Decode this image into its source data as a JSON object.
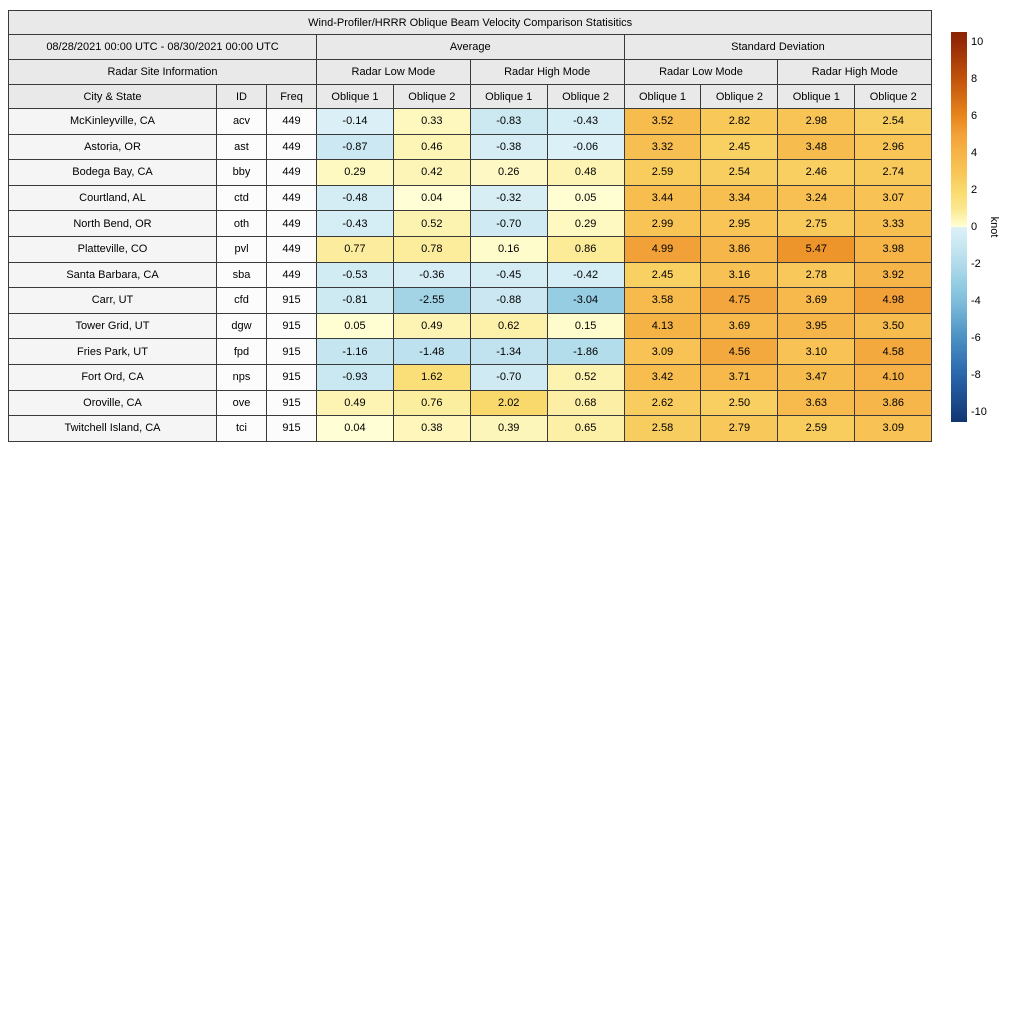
{
  "title": "Wind-Profiler/HRRR Oblique Beam Velocity Comparison Statisitics",
  "colors": {
    "page_background": "#ffffff",
    "header_background": "#e9e9e9",
    "site_cell_background": "#f5f5f5",
    "grid_border": "#3a3a3a"
  },
  "chart_data": {
    "type": "heatmap",
    "title": "Wind-Profiler/HRRR Oblique Beam Velocity Comparison Statisitics",
    "date_range": "08/28/2021 00:00 UTC - 08/30/2021 00:00 UTC",
    "site_info_header": "Radar Site Information",
    "group_headers": [
      "Average",
      "Standard Deviation"
    ],
    "mode_headers": [
      "Radar Low Mode",
      "Radar High Mode",
      "Radar Low Mode",
      "Radar High Mode"
    ],
    "column_headers": [
      "City & State",
      "ID",
      "Freq",
      "Oblique 1",
      "Oblique 2",
      "Oblique 1",
      "Oblique 2",
      "Oblique 1",
      "Oblique 2",
      "Oblique 1",
      "Oblique 2"
    ],
    "rows": [
      {
        "city": "McKinleyville, CA",
        "id": "acv",
        "freq": "449",
        "values": [
          -0.14,
          0.33,
          -0.83,
          -0.43,
          3.52,
          2.82,
          2.98,
          2.54
        ]
      },
      {
        "city": "Astoria, OR",
        "id": "ast",
        "freq": "449",
        "values": [
          -0.87,
          0.46,
          -0.38,
          -0.06,
          3.32,
          2.45,
          3.48,
          2.96
        ]
      },
      {
        "city": "Bodega Bay, CA",
        "id": "bby",
        "freq": "449",
        "values": [
          0.29,
          0.42,
          0.26,
          0.48,
          2.59,
          2.54,
          2.46,
          2.74
        ]
      },
      {
        "city": "Courtland, AL",
        "id": "ctd",
        "freq": "449",
        "values": [
          -0.48,
          0.04,
          -0.32,
          0.05,
          3.44,
          3.34,
          3.24,
          3.07
        ]
      },
      {
        "city": "North Bend, OR",
        "id": "oth",
        "freq": "449",
        "values": [
          -0.43,
          0.52,
          -0.7,
          0.29,
          2.99,
          2.95,
          2.75,
          3.33
        ]
      },
      {
        "city": "Platteville, CO",
        "id": "pvl",
        "freq": "449",
        "values": [
          0.77,
          0.78,
          0.16,
          0.86,
          4.99,
          3.86,
          5.47,
          3.98
        ]
      },
      {
        "city": "Santa Barbara, CA",
        "id": "sba",
        "freq": "449",
        "values": [
          -0.53,
          -0.36,
          -0.45,
          -0.42,
          2.45,
          3.16,
          2.78,
          3.92
        ]
      },
      {
        "city": "Carr, UT",
        "id": "cfd",
        "freq": "915",
        "values": [
          -0.81,
          -2.55,
          -0.88,
          -3.04,
          3.58,
          4.75,
          3.69,
          4.98
        ]
      },
      {
        "city": "Tower Grid, UT",
        "id": "dgw",
        "freq": "915",
        "values": [
          0.05,
          0.49,
          0.62,
          0.15,
          4.13,
          3.69,
          3.95,
          3.5
        ]
      },
      {
        "city": "Fries Park, UT",
        "id": "fpd",
        "freq": "915",
        "values": [
          -1.16,
          -1.48,
          -1.34,
          -1.86,
          3.09,
          4.56,
          3.1,
          4.58
        ]
      },
      {
        "city": "Fort Ord, CA",
        "id": "nps",
        "freq": "915",
        "values": [
          -0.93,
          1.62,
          -0.7,
          0.52,
          3.42,
          3.71,
          3.47,
          4.1
        ]
      },
      {
        "city": "Oroville, CA",
        "id": "ove",
        "freq": "915",
        "values": [
          0.49,
          0.76,
          2.02,
          0.68,
          2.62,
          2.5,
          3.63,
          3.86
        ]
      },
      {
        "city": "Twitchell Island, CA",
        "id": "tci",
        "freq": "915",
        "values": [
          0.04,
          0.38,
          0.39,
          0.65,
          2.58,
          2.79,
          2.59,
          3.09
        ]
      }
    ],
    "colorbar": {
      "label": "knot",
      "ticks": [
        10,
        8,
        6,
        4,
        2,
        0,
        -2,
        -4,
        -6,
        -8,
        -10
      ],
      "vmin": -10.54,
      "vmax": 10.54
    },
    "colormap_stops": [
      [
        -10.54,
        "#12356f"
      ],
      [
        -10,
        "#16407e"
      ],
      [
        -8,
        "#2a66ab"
      ],
      [
        -6,
        "#4b90c4"
      ],
      [
        -4,
        "#7fbddb"
      ],
      [
        -3,
        "#97cee2"
      ],
      [
        -2,
        "#b1dbea"
      ],
      [
        -1,
        "#c9e7f1"
      ],
      [
        -0.01,
        "#ddf1f7"
      ],
      [
        0.01,
        "#ffffd6"
      ],
      [
        1,
        "#fbe88d"
      ],
      [
        2,
        "#f9d96c"
      ],
      [
        3,
        "#f8c455"
      ],
      [
        4,
        "#f6b447"
      ],
      [
        5,
        "#f2a139"
      ],
      [
        6,
        "#e8851c"
      ],
      [
        8,
        "#c2530b"
      ],
      [
        10,
        "#942906"
      ],
      [
        10.54,
        "#8a2306"
      ]
    ]
  }
}
